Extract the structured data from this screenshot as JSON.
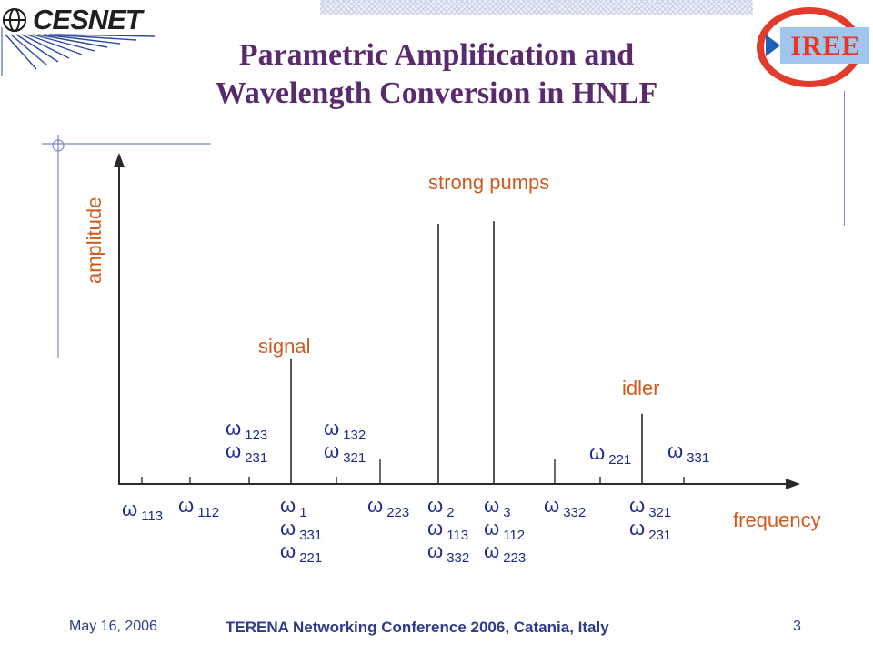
{
  "header": {
    "title_line1": "Parametric Amplification and",
    "title_line2": "Wavelength Conversion in HNLF",
    "left_logo_text": "CESNET",
    "right_logo_text": "IREE"
  },
  "diagram": {
    "y_axis_label": "amplitude",
    "x_axis_label": "frequency",
    "annotations": {
      "strong_pumps": "strong pumps",
      "signal": "signal",
      "idler": "idler"
    },
    "tall_lines": [
      {
        "id": "signal",
        "amplitude": 0.48
      },
      {
        "id": "pump2",
        "amplitude": 1.0
      },
      {
        "id": "pump3",
        "amplitude": 1.01
      },
      {
        "id": "idler",
        "amplitude": 0.27
      }
    ],
    "symbol": "ω",
    "below_axis": [
      {
        "id": "w113-left",
        "lines": [
          {
            "sub": "113"
          }
        ]
      },
      {
        "id": "w112-left",
        "lines": [
          {
            "sub": "112"
          }
        ]
      },
      {
        "id": "w1-group",
        "lines": [
          {
            "sub": "1"
          },
          {
            "sub": "331"
          },
          {
            "sub": "221"
          }
        ]
      },
      {
        "id": "w223-mid",
        "lines": [
          {
            "sub": "223"
          }
        ]
      },
      {
        "id": "w2-group",
        "lines": [
          {
            "sub": "2"
          },
          {
            "sub": "113"
          },
          {
            "sub": "332"
          }
        ]
      },
      {
        "id": "w3-group",
        "lines": [
          {
            "sub": "3"
          },
          {
            "sub": "112"
          },
          {
            "sub": "223"
          }
        ]
      },
      {
        "id": "w332-right",
        "lines": [
          {
            "sub": "332"
          }
        ]
      },
      {
        "id": "w321-group",
        "lines": [
          {
            "sub": "321"
          },
          {
            "sub": "231"
          }
        ]
      }
    ],
    "above_axis": [
      {
        "id": "w123-group",
        "lines": [
          {
            "sub": "123"
          },
          {
            "sub": "231"
          }
        ]
      },
      {
        "id": "w132-group",
        "lines": [
          {
            "sub": "132"
          },
          {
            "sub": "321"
          }
        ]
      },
      {
        "id": "w221-right",
        "lines": [
          {
            "sub": "221"
          }
        ]
      },
      {
        "id": "w331-right",
        "lines": [
          {
            "sub": "331"
          }
        ]
      }
    ]
  },
  "footer": {
    "date": "May 16, 2006",
    "conference": "TERENA Networking Conference 2006, Catania, Italy",
    "page": "3"
  }
}
